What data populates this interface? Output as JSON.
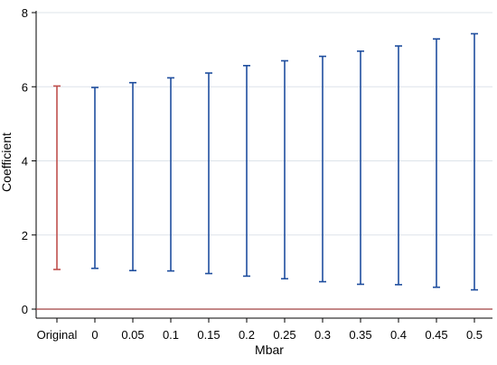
{
  "chart_data": {
    "type": "errorbar",
    "xlabel": "Mbar",
    "ylabel": "Coefficient",
    "ylim": [
      0,
      8
    ],
    "yticks": [
      0,
      2,
      4,
      6,
      8
    ],
    "grid": true,
    "reference_line_y": 0,
    "categories": [
      "Original",
      "0",
      "0.05",
      "0.1",
      "0.15",
      "0.2",
      "0.25",
      "0.3",
      "0.35",
      "0.4",
      "0.45",
      "0.5"
    ],
    "intervals": [
      {
        "low": 1.07,
        "high": 6.02
      },
      {
        "low": 1.1,
        "high": 5.98
      },
      {
        "low": 1.04,
        "high": 6.11
      },
      {
        "low": 1.03,
        "high": 6.24
      },
      {
        "low": 0.96,
        "high": 6.37
      },
      {
        "low": 0.89,
        "high": 6.57
      },
      {
        "low": 0.82,
        "high": 6.7
      },
      {
        "low": 0.74,
        "high": 6.82
      },
      {
        "low": 0.67,
        "high": 6.96
      },
      {
        "low": 0.66,
        "high": 7.1
      },
      {
        "low": 0.59,
        "high": 7.29
      },
      {
        "low": 0.52,
        "high": 7.43
      }
    ],
    "colors": {
      "original": "#c0504d",
      "bars": "#1f4e9e",
      "reference_line": "#a04040",
      "grid": "#dde4ea",
      "axis": "#000000"
    }
  }
}
